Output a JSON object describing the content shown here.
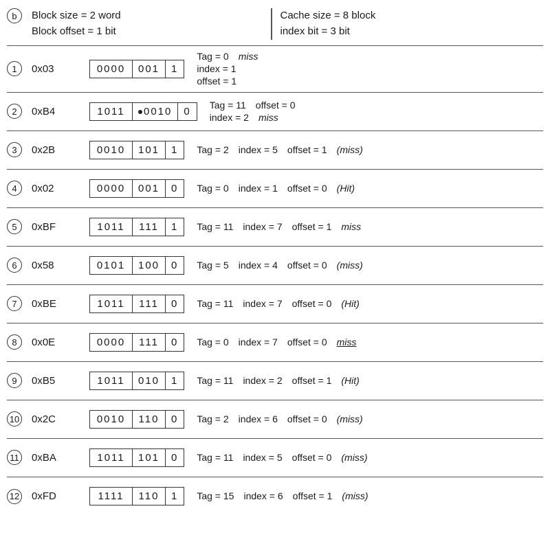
{
  "header": {
    "label_b": "b",
    "block_size": "Block size = 2 word",
    "block_offset": "Block offset = 1 bit",
    "cache_size": "Cache size = 8 block",
    "index_bit": "index bit = 3 bit"
  },
  "rows": [
    {
      "num": "1",
      "addr": "0x03",
      "tag_bits": "0000",
      "idx_bits": "001",
      "off_bits": "1",
      "tag": "Tag = 0",
      "index": "index = 1",
      "offset": "offset = 1",
      "result": "miss",
      "layout": "stack"
    },
    {
      "num": "2",
      "addr": "0xB4",
      "tag_bits": "1011",
      "idx_bits": "0010",
      "idx_has_dot": true,
      "off_bits": "0",
      "tag": "Tag = 11",
      "index": "index = 2",
      "offset": "offset = 0",
      "result": "miss",
      "layout": "stack2"
    },
    {
      "num": "3",
      "addr": "0x2B",
      "tag_bits": "0010",
      "idx_bits": "101",
      "off_bits": "1",
      "tag": "Tag = 2",
      "index": "index = 5",
      "offset": "offset = 1",
      "result": "(miss)",
      "layout": "inline"
    },
    {
      "num": "4",
      "addr": "0x02",
      "tag_bits": "0000",
      "idx_bits": "001",
      "off_bits": "0",
      "tag": "Tag = 0",
      "index": "index = 1",
      "offset": "offset = 0",
      "result": "(Hit)",
      "layout": "inline"
    },
    {
      "num": "5",
      "addr": "0xBF",
      "tag_bits": "1011",
      "idx_bits": "111",
      "off_bits": "1",
      "tag": "Tag = 11",
      "index": "index = 7",
      "offset": "offset = 1",
      "result": "miss",
      "layout": "inline"
    },
    {
      "num": "6",
      "addr": "0x58",
      "tag_bits": "0101",
      "idx_bits": "100",
      "off_bits": "0",
      "tag": "Tag = 5",
      "index": "index = 4",
      "offset": "offset = 0",
      "result": "(miss)",
      "layout": "inline"
    },
    {
      "num": "7",
      "addr": "0xBE",
      "tag_bits": "1011",
      "idx_bits": "111",
      "off_bits": "0",
      "tag": "Tag = 11",
      "index": "index = 7",
      "offset": "offset = 0",
      "result": "(Hit)",
      "layout": "inline"
    },
    {
      "num": "8",
      "addr": "0x0E",
      "tag_bits": "0000",
      "idx_bits": "111",
      "off_bits": "0",
      "tag": "Tag = 0",
      "index": "index = 7",
      "offset": "offset = 0",
      "result": "miss",
      "result_underline": true,
      "layout": "inline"
    },
    {
      "num": "9",
      "addr": "0xB5",
      "tag_bits": "1011",
      "idx_bits": "010",
      "off_bits": "1",
      "tag": "Tag = 11",
      "index": "index = 2",
      "offset": "offset = 1",
      "result": "(Hit)",
      "layout": "inline"
    },
    {
      "num": "10",
      "addr": "0x2C",
      "tag_bits": "0010",
      "idx_bits": "110",
      "off_bits": "0",
      "tag": "Tag = 2",
      "index": "index = 6",
      "offset": "offset = 0",
      "result": "(miss)",
      "layout": "inline"
    },
    {
      "num": "11",
      "addr": "0xBA",
      "tag_bits": "1011",
      "idx_bits": "101",
      "off_bits": "0",
      "tag": "Tag = 11",
      "index": "index = 5",
      "offset": "offset = 0",
      "result": "(miss)",
      "layout": "inline"
    },
    {
      "num": "12",
      "addr": "0xFD",
      "tag_bits": "1111",
      "idx_bits": "110",
      "off_bits": "1",
      "tag": "Tag = 15",
      "index": "index = 6",
      "offset": "offset = 1",
      "result": "(miss)",
      "layout": "inline"
    }
  ],
  "colors": {
    "text": "#1a1a1a",
    "border": "#555555",
    "background": "#ffffff"
  }
}
